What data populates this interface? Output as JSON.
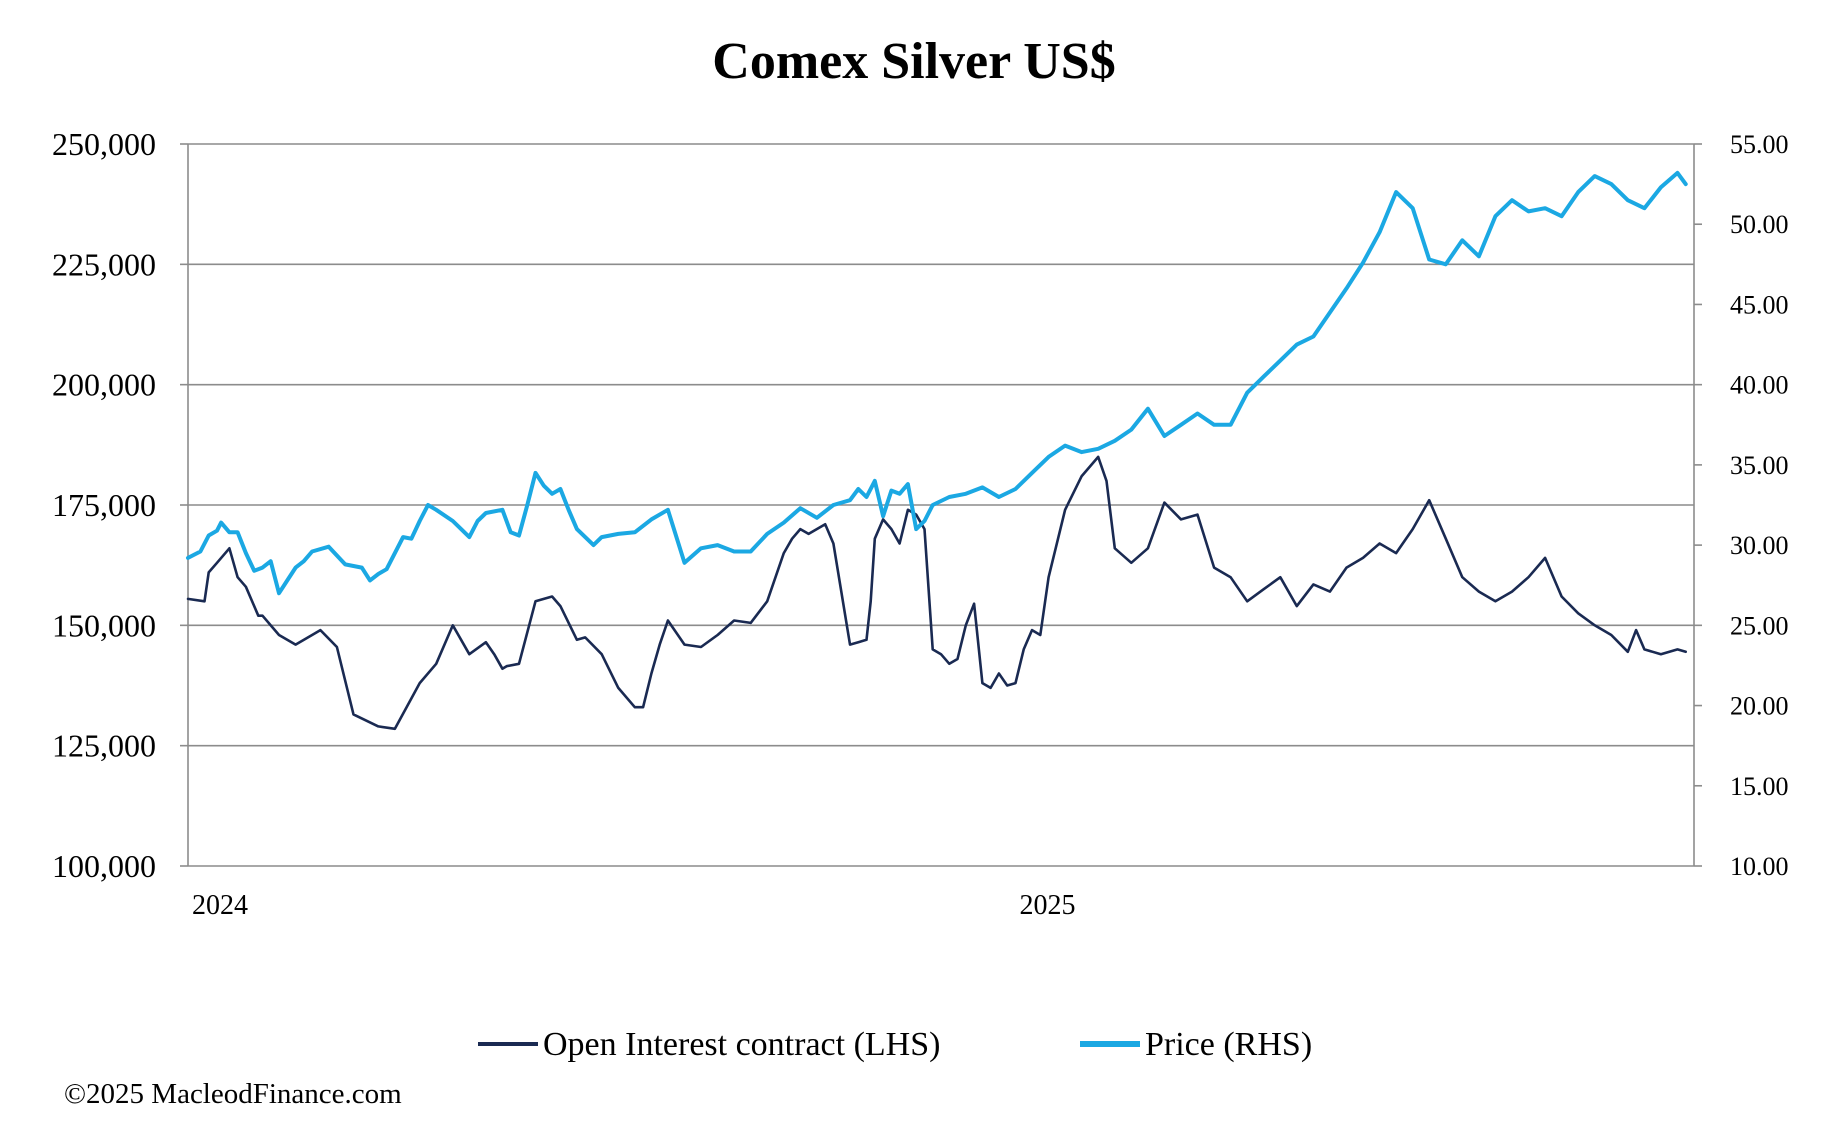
{
  "chart_data": {
    "type": "line",
    "title": "Comex Silver US$",
    "left_axis": {
      "label": "Open Interest contract (LHS)",
      "ylim": [
        100000,
        250000
      ],
      "ticks": [
        100000,
        125000,
        150000,
        175000,
        200000,
        225000,
        250000
      ],
      "tick_labels": [
        "100,000",
        "125,000",
        "150,000",
        "175,000",
        "200,000",
        "225,000",
        "250,000"
      ]
    },
    "right_axis": {
      "label": "Price (RHS)",
      "ylim": [
        10,
        55
      ],
      "ticks": [
        10,
        15,
        20,
        25,
        30,
        35,
        40,
        45,
        50,
        55
      ],
      "tick_labels": [
        "10.00",
        "15.00",
        "20.00",
        "25.00",
        "30.00",
        "35.00",
        "40.00",
        "45.00",
        "50.00",
        "55.00"
      ]
    },
    "x_axis": {
      "range": [
        2024.0,
        2025.82
      ],
      "tick_values": [
        2024.0,
        2025.0
      ],
      "tick_labels": [
        "2024",
        "2025"
      ]
    },
    "grid": "horizontal",
    "legend_position": "bottom",
    "series": [
      {
        "name": "Open Interest contract (LHS)",
        "axis": "left",
        "color": "#1a2a52",
        "x": [
          2024.0,
          2024.02,
          2024.025,
          2024.035,
          2024.05,
          2024.06,
          2024.07,
          2024.085,
          2024.09,
          2024.11,
          2024.13,
          2024.15,
          2024.16,
          2024.18,
          2024.2,
          2024.23,
          2024.25,
          2024.28,
          2024.3,
          2024.32,
          2024.33,
          2024.34,
          2024.36,
          2024.37,
          2024.38,
          2024.385,
          2024.4,
          2024.42,
          2024.44,
          2024.45,
          2024.47,
          2024.48,
          2024.5,
          2024.52,
          2024.54,
          2024.55,
          2024.56,
          2024.57,
          2024.58,
          2024.6,
          2024.62,
          2024.64,
          2024.66,
          2024.68,
          2024.7,
          2024.72,
          2024.73,
          2024.74,
          2024.75,
          2024.77,
          2024.78,
          2024.8,
          2024.81,
          2024.82,
          2024.825,
          2024.83,
          2024.84,
          2024.85,
          2024.86,
          2024.87,
          2024.88,
          2024.89,
          2024.9,
          2024.91,
          2024.92,
          2024.93,
          2024.94,
          2024.95,
          2024.96,
          2024.97,
          2024.98,
          2024.99,
          2025.0,
          2025.01,
          2025.02,
          2025.03,
          2025.04,
          2025.06,
          2025.08,
          2025.1,
          2025.11,
          2025.12,
          2025.14,
          2025.16,
          2025.18,
          2025.2,
          2025.22,
          2025.24,
          2025.26,
          2025.28,
          2025.3,
          2025.32,
          2025.34,
          2025.36,
          2025.38,
          2025.4,
          2025.42,
          2025.44,
          2025.46,
          2025.48,
          2025.5,
          2025.52,
          2025.54,
          2025.56,
          2025.58,
          2025.6,
          2025.62,
          2025.64,
          2025.66,
          2025.68,
          2025.7,
          2025.72,
          2025.74,
          2025.75,
          2025.76,
          2025.78,
          2025.8,
          2025.81
        ],
        "values": [
          155500,
          155000,
          161000,
          163000,
          166000,
          160000,
          158000,
          152000,
          152000,
          148000,
          146000,
          148000,
          149000,
          145500,
          131500,
          129000,
          128500,
          138000,
          142000,
          150000,
          147000,
          144000,
          146500,
          144000,
          141000,
          141500,
          142000,
          155000,
          156000,
          154000,
          147000,
          147500,
          144000,
          137000,
          133000,
          133000,
          140000,
          146000,
          151000,
          146000,
          145500,
          148000,
          151000,
          150500,
          155000,
          165000,
          168000,
          170000,
          169000,
          171000,
          167000,
          146000,
          146500,
          147000,
          155000,
          168000,
          172000,
          170000,
          167000,
          174000,
          173000,
          170000,
          145000,
          144000,
          142000,
          143000,
          150000,
          154500,
          138000,
          137000,
          140000,
          137500,
          138000,
          145000,
          149000,
          148000,
          160000,
          174000,
          181000,
          185000,
          180000,
          166000,
          163000,
          166000,
          175500,
          172000,
          173000,
          162000,
          160000,
          155000,
          157500,
          160000,
          154000,
          158500,
          157000,
          162000,
          164000,
          167000,
          165000,
          170000,
          176000,
          168000,
          160000,
          157000,
          155000,
          157000,
          160000,
          164000,
          156000,
          152500,
          150000,
          148000,
          144500,
          149000,
          145000,
          144000,
          145000,
          144500
        ]
      },
      {
        "name": "Price (RHS)",
        "axis": "right",
        "color": "#1ba8e3",
        "x": [
          2024.0,
          2024.015,
          2024.025,
          2024.035,
          2024.04,
          2024.05,
          2024.06,
          2024.07,
          2024.08,
          2024.09,
          2024.1,
          2024.11,
          2024.12,
          2024.13,
          2024.14,
          2024.15,
          2024.17,
          2024.19,
          2024.21,
          2024.22,
          2024.23,
          2024.24,
          2024.26,
          2024.27,
          2024.28,
          2024.29,
          2024.3,
          2024.32,
          2024.33,
          2024.34,
          2024.35,
          2024.36,
          2024.38,
          2024.39,
          2024.4,
          2024.41,
          2024.42,
          2024.43,
          2024.44,
          2024.45,
          2024.46,
          2024.47,
          2024.48,
          2024.49,
          2024.5,
          2024.52,
          2024.54,
          2024.56,
          2024.58,
          2024.6,
          2024.62,
          2024.64,
          2024.66,
          2024.68,
          2024.7,
          2024.72,
          2024.74,
          2024.76,
          2024.78,
          2024.8,
          2024.81,
          2024.82,
          2024.83,
          2024.84,
          2024.85,
          2024.86,
          2024.87,
          2024.88,
          2024.89,
          2024.9,
          2024.92,
          2024.94,
          2024.96,
          2024.98,
          2025.0,
          2025.02,
          2025.04,
          2025.06,
          2025.08,
          2025.1,
          2025.12,
          2025.14,
          2025.16,
          2025.18,
          2025.2,
          2025.22,
          2025.24,
          2025.26,
          2025.28,
          2025.3,
          2025.32,
          2025.34,
          2025.36,
          2025.38,
          2025.4,
          2025.42,
          2025.44,
          2025.46,
          2025.48,
          2025.5,
          2025.52,
          2025.54,
          2025.56,
          2025.58,
          2025.6,
          2025.62,
          2025.64,
          2025.66,
          2025.68,
          2025.7,
          2025.72,
          2025.74,
          2025.76,
          2025.78,
          2025.8,
          2025.81
        ],
        "values": [
          29.2,
          29.6,
          30.6,
          30.9,
          31.4,
          30.8,
          30.8,
          29.5,
          28.4,
          28.6,
          29.0,
          27.0,
          27.8,
          28.6,
          29.0,
          29.6,
          29.9,
          28.8,
          28.6,
          27.8,
          28.2,
          28.5,
          30.5,
          30.4,
          31.5,
          32.5,
          32.2,
          31.5,
          31.0,
          30.5,
          31.5,
          32.0,
          32.2,
          30.8,
          30.6,
          32.5,
          34.5,
          33.7,
          33.2,
          33.5,
          32.2,
          31.0,
          30.5,
          30.0,
          30.5,
          30.7,
          30.8,
          31.6,
          32.2,
          28.9,
          29.8,
          30.0,
          29.6,
          29.6,
          30.7,
          31.4,
          32.3,
          31.7,
          32.5,
          32.8,
          33.5,
          33.0,
          34.0,
          31.8,
          33.4,
          33.2,
          33.8,
          31.0,
          31.5,
          32.5,
          33.0,
          33.2,
          33.6,
          33.0,
          33.5,
          34.5,
          35.5,
          36.2,
          35.8,
          36.0,
          36.5,
          37.2,
          38.5,
          36.8,
          37.5,
          38.2,
          37.5,
          37.5,
          39.5,
          40.5,
          41.5,
          42.5,
          43.0,
          44.5,
          46.0,
          47.6,
          49.5,
          52.0,
          51.0,
          47.8,
          47.5,
          49.0,
          48.0,
          50.5,
          51.5,
          50.8,
          51.0,
          50.5,
          52.0,
          53.0,
          52.5,
          51.5,
          51.0,
          52.3,
          53.2,
          52.5
        ]
      }
    ]
  },
  "legend": {
    "items": [
      {
        "label": "Open Interest contract (LHS)",
        "color": "#1a2a52"
      },
      {
        "label": "Price (RHS)",
        "color": "#1ba8e3"
      }
    ]
  },
  "footer": {
    "copyright": "©2025 MacleodFinance.com"
  }
}
